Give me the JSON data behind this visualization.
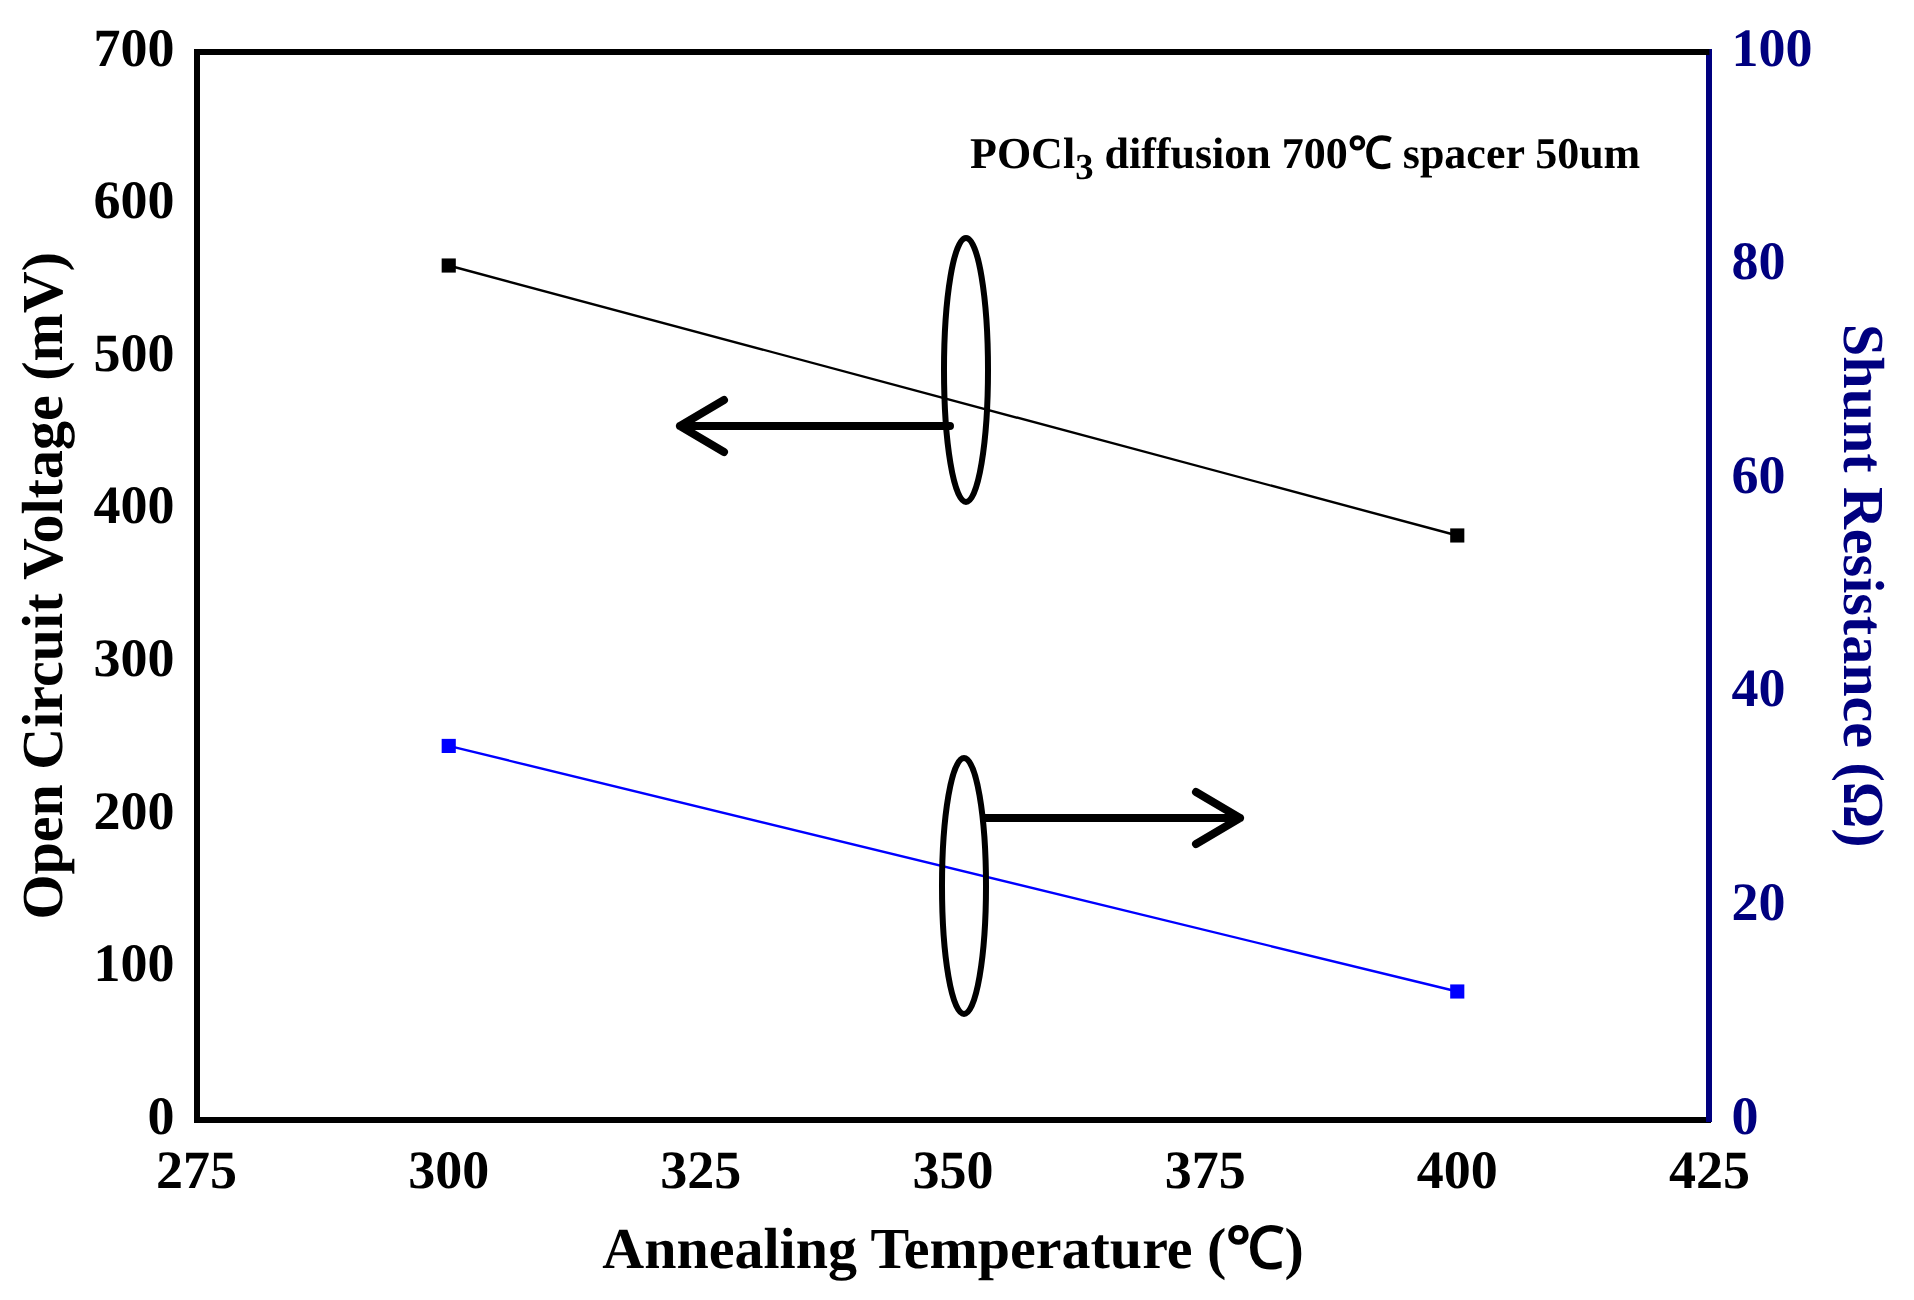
{
  "chart_data": {
    "type": "line",
    "xlabel": "Annealing Temperature (℃)",
    "ylabel": "Open Circuit Voltage (mV)",
    "y2label": "Shunt Resistance (Ω)",
    "x": [
      300,
      400
    ],
    "series": [
      {
        "color": "#000000",
        "values": [
          560,
          383
        ]
      },
      {
        "color": "#0000ff",
        "values": [
          35,
          12
        ],
        "axis": "y2"
      }
    ],
    "xlim": [
      275,
      425
    ],
    "xticks": [
      275,
      300,
      325,
      350,
      375,
      400,
      425
    ],
    "ylim": [
      0,
      700
    ],
    "yticks": [
      0,
      100,
      200,
      300,
      400,
      500,
      600,
      700
    ],
    "y2lim": [
      0,
      100
    ],
    "y2ticks": [
      0,
      20,
      40,
      60,
      80,
      100
    ],
    "marker": "square",
    "grid": false,
    "legend": false,
    "annotations": [
      "POCl$_{3}$ diffusion 700℃ spacer 50um"
    ]
  }
}
